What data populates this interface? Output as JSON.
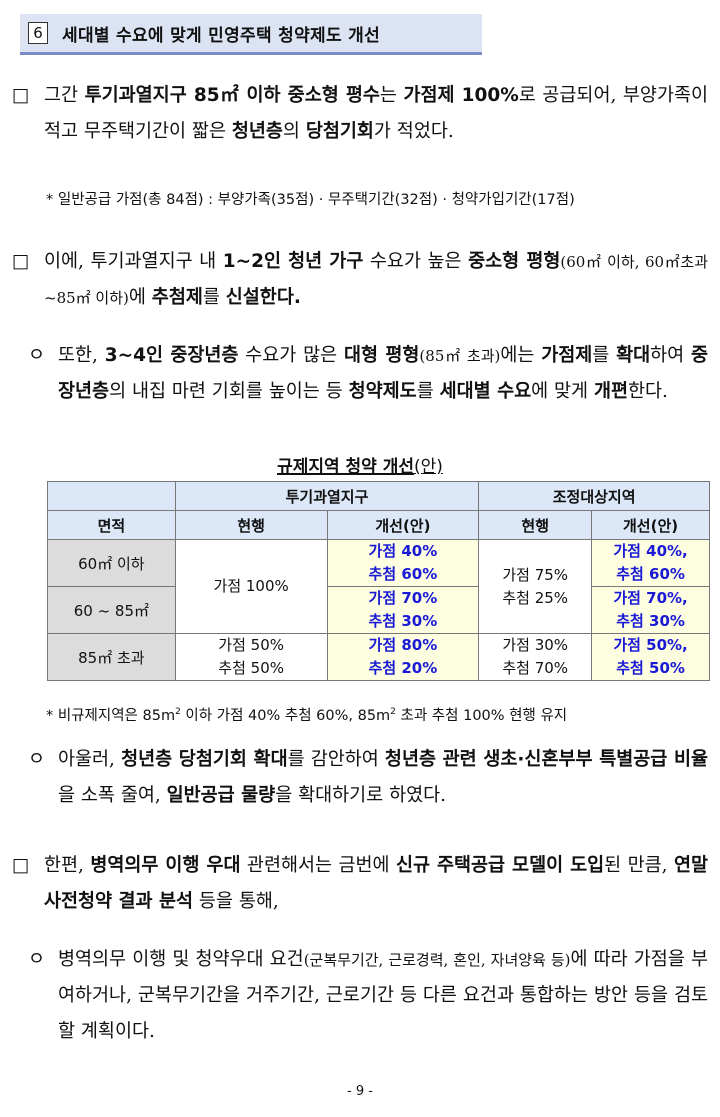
{
  "header": {
    "num": "6",
    "title": "세대별 수요에 맞게 민영주택 청약제도 개선"
  },
  "bullets": {
    "square": "□",
    "circle": "ㅇ"
  },
  "p1": {
    "a": "그간 ",
    "b": "투기과열지구 85㎡ 이하 중소형 평수",
    "c": "는 ",
    "d": "가점제 100%",
    "e": "로 공급되어, 부양가족이 적고 무주택기간이 짧은 ",
    "f": "청년층",
    "g": "의 ",
    "h": "당첨기회",
    "i": "가 적었다."
  },
  "note1": "* 일반공급 가점(총 84점) : 부양가족(35점) · 무주택기간(32점) · 청약가입기간(17점)",
  "p2": {
    "a": "이에, 투기과열지구 내 ",
    "b": "1~2인 청년 가구",
    "c": " 수요가 높은 ",
    "d": "중소형 평형",
    "e": "(60㎡ 이하, 60㎡초과 ~85㎡ 이하)",
    "f": "에 ",
    "g": "추첨제",
    "h": "를 ",
    "i": "신설한다."
  },
  "p3": {
    "a": "또한, ",
    "b": "3~4인 중장년층",
    "c": " 수요가 많은 ",
    "d": "대형 평형",
    "e": "(85㎡ 초과)",
    "f": "에는 ",
    "g": "가점제",
    "h": "를 ",
    "i": "확대",
    "j": "하여 ",
    "k": "중장년층",
    "l": "의 내집 마련 기회를 높이는 등 ",
    "m": "청약제도",
    "n": "를 ",
    "o": "세대별 수요",
    "p": "에 맞게 ",
    "q": "개편",
    "r": "한다."
  },
  "table": {
    "title": "규제지역 청약 개선",
    "title_suffix": "(안)",
    "group1": "투기과열지구",
    "group2": "조정대상지역",
    "col_area": "면적",
    "col_current": "현행",
    "col_improved": "개선(안)",
    "rows": [
      {
        "area": "60㎡ 이하",
        "over_imp": [
          "가점 40%",
          "추첨 60%"
        ],
        "adj_imp": [
          "가점 40%,",
          "추첨 60%"
        ]
      },
      {
        "area": "60 ~ 85㎡",
        "over_imp": [
          "가점 70%",
          "추첨 30%"
        ],
        "adj_imp": [
          "가점 70%,",
          "추첨 30%"
        ]
      },
      {
        "area": "85㎡ 초과",
        "over_cur": [
          "가점 50%",
          "추첨 50%"
        ],
        "over_imp": [
          "가점 80%",
          "추첨 20%"
        ],
        "adj_cur": [
          "가점 30%",
          "추첨 70%"
        ],
        "adj_imp": [
          "가점 50%,",
          "추첨 50%"
        ]
      }
    ],
    "over_cur_small": "가점 100%",
    "adj_cur_small": [
      "가점 75%",
      "추첨 25%"
    ]
  },
  "note2": {
    "a": "* 비규제지역은 85m",
    "sup1": "2",
    "b": " 이하 가점 40% 추첨 60%, 85m",
    "sup2": "2",
    "c": " 초과 추첨 100% 현행 유지"
  },
  "p4": {
    "a": "아울러, ",
    "b": "청년층 당첨기회 확대",
    "c": "를 감안하여 ",
    "d": "청년층 관련 생초·신혼부부 특별공급 비율",
    "e": "을 소폭 줄여, ",
    "f": "일반공급 물량",
    "g": "을 확대하기로 하였다."
  },
  "p5": {
    "a": "한편, ",
    "b": "병역의무 이행 우대",
    "c": " 관련해서는 금번에 ",
    "d": "신규 주택공급 모델이 도입",
    "e": "된 만큼, ",
    "f": "연말 사전청약 결과 분석",
    "g": " 등을 통해,"
  },
  "p6": {
    "a": "병역의무 이행 및 청약우대 요건",
    "b": "(군복무기간, 근로경력, 혼인, 자녀양육 등)",
    "c": "에 따라 가점을 부여하거나, 군복무기간을 거주기간, 근로기간 등 다른 요건과 통합하는 방안 등을 검토할 계획이다."
  },
  "page_number": "- 9 -"
}
